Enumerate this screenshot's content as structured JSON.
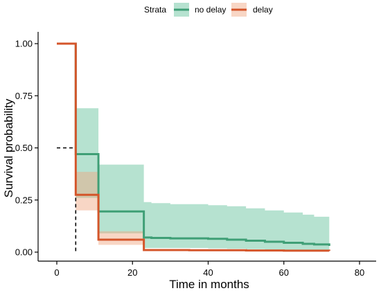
{
  "chart_data": {
    "type": "line",
    "subtype": "kaplan-meier-survival",
    "xlabel": "Time in months",
    "ylabel": "Survival probability",
    "xlim": [
      0,
      80
    ],
    "ylim": [
      0,
      1
    ],
    "x_ticks": [
      0,
      20,
      40,
      60,
      80
    ],
    "y_ticks": [
      0,
      0.25,
      0.5,
      0.75,
      1
    ],
    "y_tick_labels": [
      "0.00",
      "0.25",
      "0.50",
      "0.75",
      "1.00"
    ],
    "grid": false,
    "legend": {
      "title": "Strata",
      "placement": "top"
    },
    "median_line": {
      "y": 0.5,
      "x": 5
    },
    "series": [
      {
        "name": "no delay",
        "color": "#3f9f76",
        "ci_color": "#5dbf96",
        "x": [
          0,
          5,
          11,
          23,
          25,
          30,
          40,
          45,
          50,
          55,
          60,
          65,
          68,
          72
        ],
        "y": [
          1.0,
          0.47,
          0.195,
          0.07,
          0.068,
          0.066,
          0.064,
          0.06,
          0.055,
          0.05,
          0.045,
          0.04,
          0.037,
          0.03
        ],
        "ci_upper": [
          1.0,
          0.69,
          0.42,
          0.24,
          0.235,
          0.23,
          0.225,
          0.22,
          0.21,
          0.2,
          0.19,
          0.18,
          0.17,
          0.16
        ],
        "ci_lower": [
          1.0,
          0.26,
          0.09,
          0.02,
          0.02,
          0.02,
          0.018,
          0.016,
          0.014,
          0.012,
          0.011,
          0.01,
          0.009,
          0.008
        ]
      },
      {
        "name": "delay",
        "color": "#d4552a",
        "ci_color": "#f0a37f",
        "x": [
          0,
          5,
          11,
          23,
          35,
          50,
          60,
          72
        ],
        "y": [
          1.0,
          0.275,
          0.06,
          0.01,
          0.009,
          0.008,
          0.007,
          0.006
        ],
        "ci_upper": [
          1.0,
          0.385,
          0.1,
          0.01,
          0.009,
          0.008,
          0.007,
          0.006
        ],
        "ci_lower": [
          1.0,
          0.2,
          0.035,
          0.01,
          0.009,
          0.008,
          0.007,
          0.006
        ]
      }
    ]
  }
}
